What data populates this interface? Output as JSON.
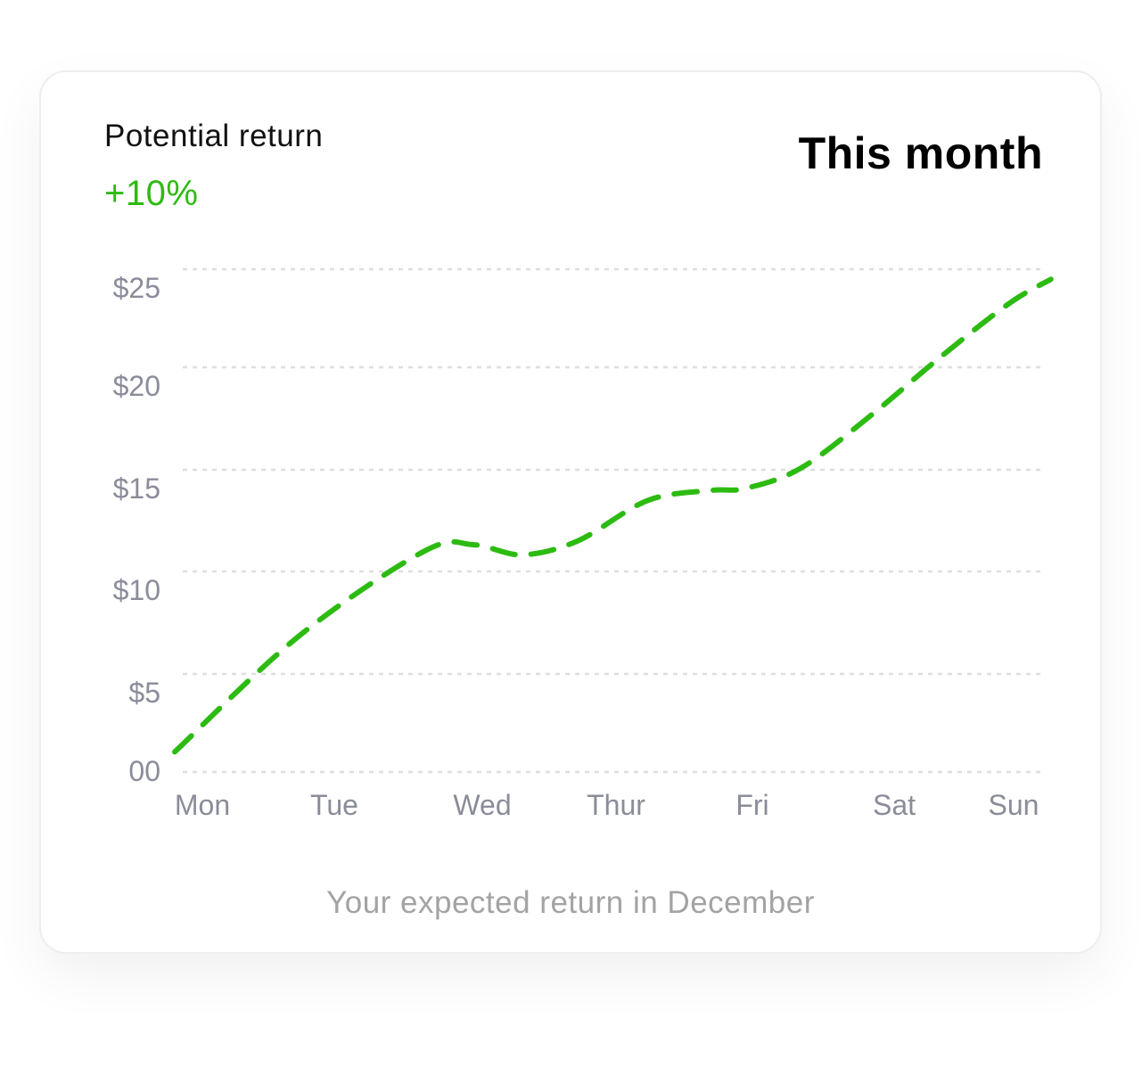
{
  "card": {
    "label": "Potential return",
    "value": "+10%",
    "period": "This month",
    "caption": "Your expected return in December"
  },
  "colors": {
    "accent": "#2dbb12",
    "grid": "#dedede",
    "axis_text": "#8a8c99",
    "caption": "#a3a3a3"
  },
  "chart_data": {
    "type": "line",
    "title": "",
    "xlabel": "",
    "ylabel": "",
    "categories": [
      "Mon",
      "Tue",
      "Wed",
      "Thur",
      "Fri",
      "Sat",
      "Sun"
    ],
    "y_ticks": [
      "00",
      "$5",
      "$10",
      "$15",
      "$20",
      "$25"
    ],
    "ylim": [
      0,
      25
    ],
    "grid": true,
    "line_style": "dashed",
    "series": [
      {
        "x": [
          0,
          0.9,
          1.8,
          2.15,
          2.5,
          2.9,
          3.4,
          3.85,
          4.1,
          4.5,
          5.0,
          5.5,
          6.0,
          6.3
        ],
        "values": [
          1,
          6.8,
          11,
          11.3,
          10.8,
          11.5,
          13.5,
          14,
          14.1,
          15.1,
          17.7,
          20.6,
          23.3,
          24.5
        ]
      }
    ]
  }
}
